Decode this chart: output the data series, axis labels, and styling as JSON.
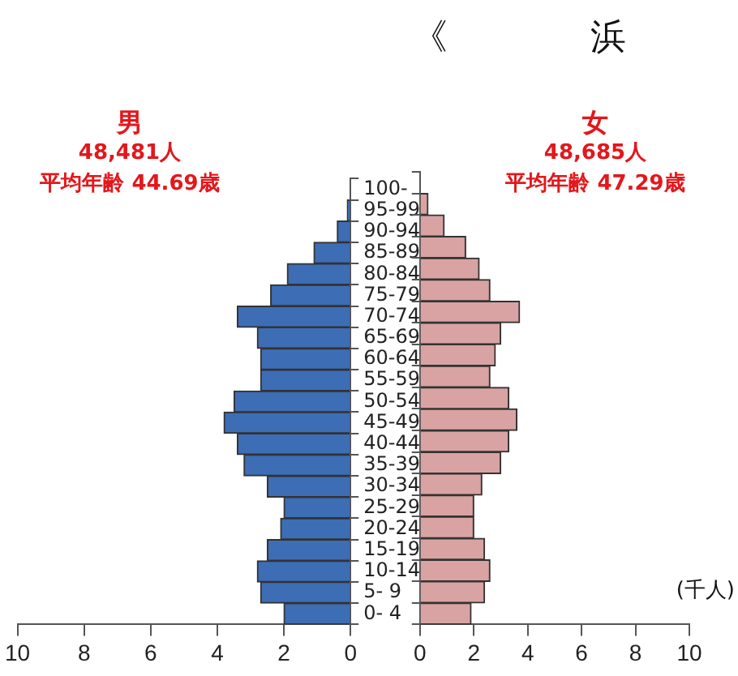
{
  "chart_data": [
    {
      "type": "bar",
      "orientation": "horizontal",
      "categories": [
        "100-",
        "95-99",
        "90-94",
        "85-89",
        "80-84",
        "75-79",
        "70-74",
        "65-69",
        "60-64",
        "55-59",
        "50-54",
        "45-49",
        "40-44",
        "35-39",
        "30-34",
        "25-29",
        "20-24",
        "15-19",
        "10-14",
        "5- 9",
        "0- 4"
      ],
      "series": [
        {
          "color": "#3d6db5",
          "values": [
            0,
            0.1,
            0.4,
            1.1,
            1.9,
            2.4,
            3.4,
            2.8,
            2.7,
            2.7,
            3.5,
            3.8,
            3.4,
            3.2,
            2.5,
            2.0,
            2.1,
            2.5,
            2.8,
            2.7,
            2.0
          ]
        }
      ],
      "xlim": [
        10,
        0
      ],
      "xticks": [
        10,
        8,
        6,
        4,
        2,
        0
      ],
      "annotations": [
        "男",
        "48,481人",
        "平均年齢 44.69歳"
      ]
    },
    {
      "type": "bar",
      "orientation": "horizontal",
      "title": "《　　　　浜",
      "categories": [
        null,
        null,
        null,
        null,
        null,
        null,
        null,
        null,
        null,
        null,
        null,
        null,
        null,
        null,
        null,
        null,
        null,
        null,
        null,
        null,
        null
      ],
      "series": [
        {
          "color": "#d9a3a3",
          "values": [
            0,
            0.3,
            0.9,
            1.7,
            2.2,
            2.6,
            3.7,
            3.0,
            2.8,
            2.6,
            3.3,
            3.6,
            3.3,
            3.0,
            2.3,
            2.0,
            2.0,
            2.4,
            2.6,
            2.4,
            1.9
          ]
        }
      ],
      "xlim": [
        0,
        10
      ],
      "xticks": [
        0,
        2,
        4,
        6,
        8,
        10
      ],
      "xlabel": "(千人)",
      "tick_labels": "x",
      "annotations": [
        "女",
        "48,685人",
        "平均年齢 47.29歳"
      ]
    }
  ]
}
